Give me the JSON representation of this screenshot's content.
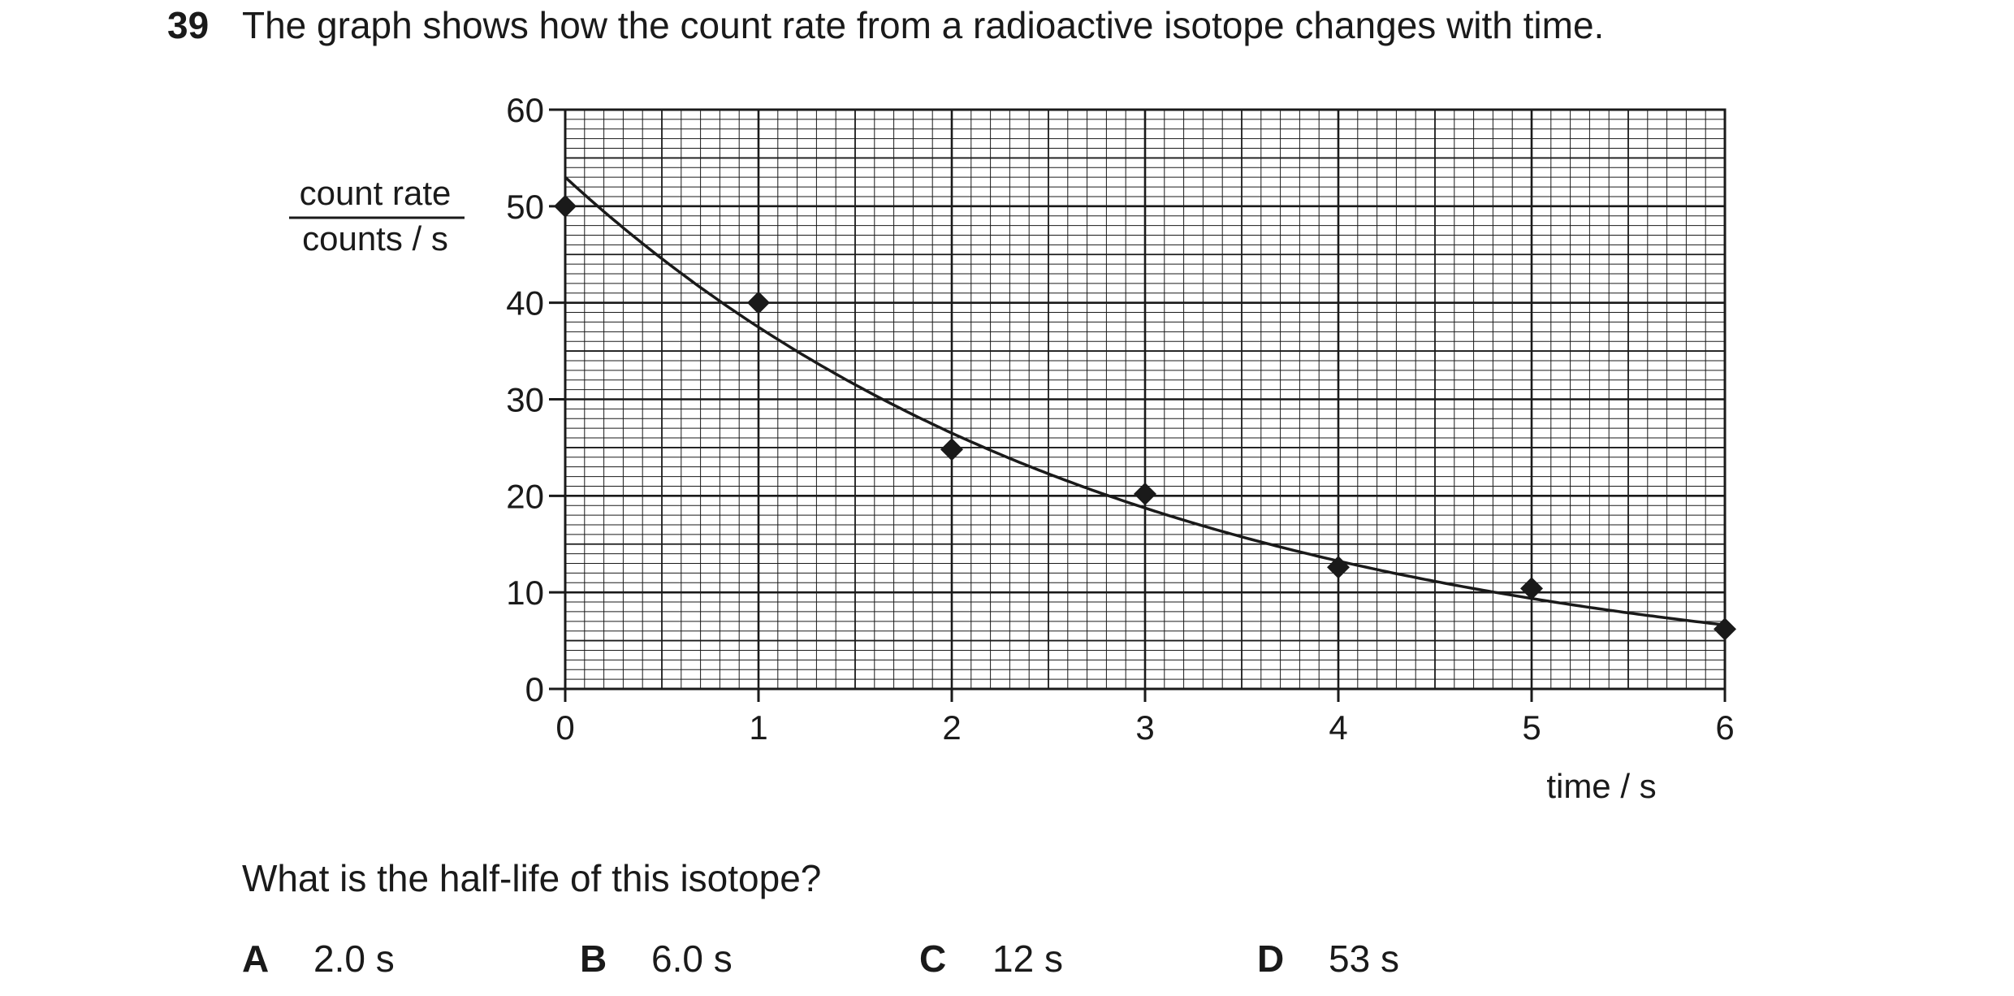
{
  "question": {
    "number": "39",
    "text": "The graph shows how the count rate from a radioactive isotope changes with time.",
    "prompt": "What is the half-life of this isotope?",
    "options": [
      {
        "letter": "A",
        "value": "2.0 s"
      },
      {
        "letter": "B",
        "value": "6.0 s"
      },
      {
        "letter": "C",
        "value": "12 s"
      },
      {
        "letter": "D",
        "value": "53 s"
      }
    ]
  },
  "chart_data": {
    "type": "scatter",
    "title": "",
    "ylabel_top": "count rate",
    "ylabel_bottom": "counts / s",
    "xlabel": "time / s",
    "xlim": [
      0,
      6
    ],
    "ylim": [
      0,
      60
    ],
    "xticks": [
      "0",
      "1",
      "2",
      "3",
      "4",
      "5",
      "6"
    ],
    "yticks": [
      "0",
      "10",
      "20",
      "30",
      "40",
      "50",
      "60"
    ],
    "grid": true,
    "points": [
      {
        "x": 0,
        "y": 50
      },
      {
        "x": 1,
        "y": 40
      },
      {
        "x": 2,
        "y": 24.8
      },
      {
        "x": 3,
        "y": 20.2
      },
      {
        "x": 4,
        "y": 12.6
      },
      {
        "x": 5,
        "y": 10.4
      },
      {
        "x": 6,
        "y": 6.2
      }
    ],
    "curve": {
      "type": "exponential-decay",
      "y0": 53,
      "half_life": 2.0
    },
    "colors": {
      "ink": "#1a1a1a"
    }
  }
}
